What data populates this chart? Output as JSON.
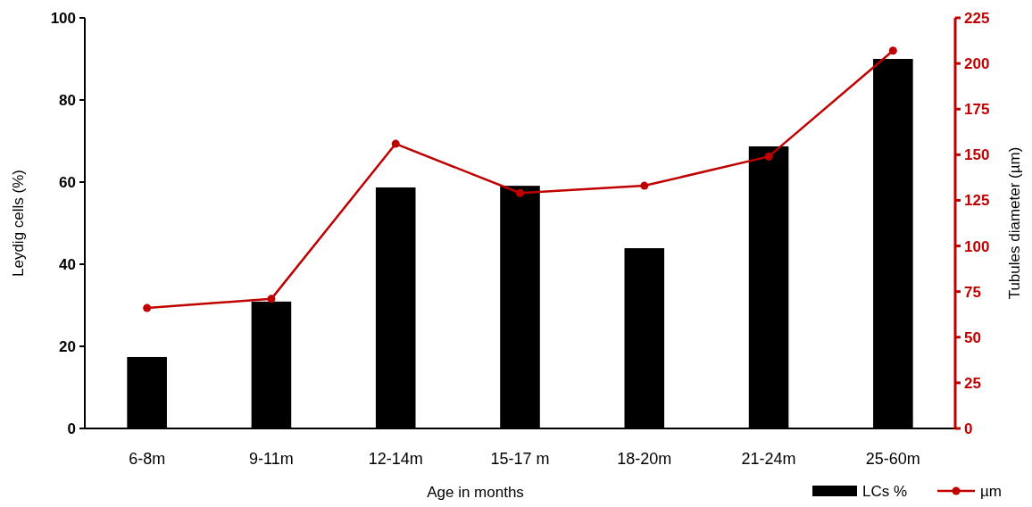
{
  "chart_data": {
    "type": "bar",
    "xlabel": "Age in months",
    "ylabel": "Leydig cells (%)",
    "y2label": "Tubules diameter (µm)",
    "categories": [
      "6-8m",
      "9-11m",
      "12-14m",
      "15-17 m",
      "18-20m",
      "21-24m",
      "25-60m"
    ],
    "series": [
      {
        "name": "LCs %",
        "color": "#000000",
        "values": [
          17.4,
          30.9,
          58.7,
          59.1,
          43.9,
          68.7,
          90.0
        ]
      },
      {
        "name": "µm",
        "type": "line",
        "axis": "y2",
        "color": "#c00000",
        "marker": "circle",
        "values": [
          66,
          71,
          156,
          129,
          133,
          149,
          207
        ]
      }
    ],
    "ylim": [
      0,
      100
    ],
    "yticks": [
      0,
      20,
      40,
      60,
      80,
      100
    ],
    "y2lim": [
      0,
      225
    ],
    "y2ticks": [
      0,
      25,
      50,
      75,
      100,
      125,
      150,
      175,
      200,
      225
    ],
    "grid": false,
    "legend": "bottom right"
  }
}
